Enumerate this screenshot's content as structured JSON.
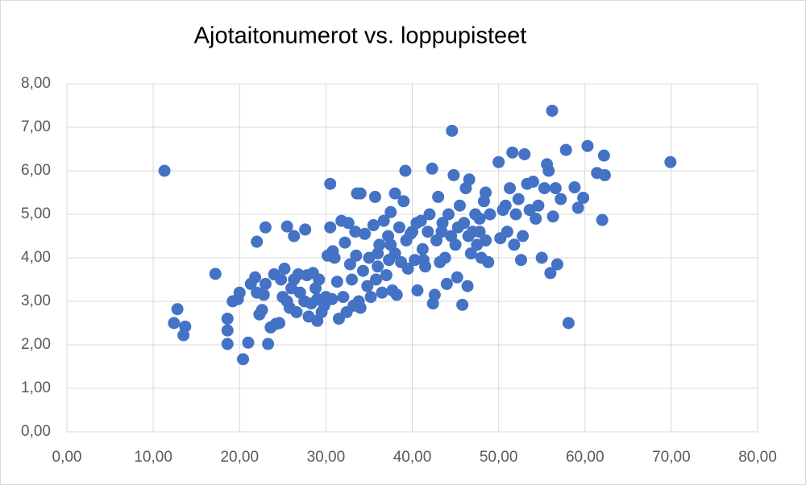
{
  "chart_data": {
    "type": "scatter",
    "title": "Ajotaitonumerot vs. loppupisteet",
    "color": "#4472c4",
    "grid": true,
    "xlim": [
      0,
      80
    ],
    "xticks": [
      {
        "value": 0,
        "label": "0,00"
      },
      {
        "value": 10,
        "label": "10,00"
      },
      {
        "value": 20,
        "label": "20,00"
      },
      {
        "value": 30,
        "label": "30,00"
      },
      {
        "value": 40,
        "label": "40,00"
      },
      {
        "value": 50,
        "label": "50,00"
      },
      {
        "value": 60,
        "label": "60,00"
      },
      {
        "value": 70,
        "label": "70,00"
      },
      {
        "value": 80,
        "label": "80,00"
      }
    ],
    "ylim": [
      0,
      8
    ],
    "yticks": [
      {
        "value": 0,
        "label": "0,00"
      },
      {
        "value": 1,
        "label": "1,00"
      },
      {
        "value": 2,
        "label": "2,00"
      },
      {
        "value": 3,
        "label": "3,00"
      },
      {
        "value": 4,
        "label": "4,00"
      },
      {
        "value": 5,
        "label": "5,00"
      },
      {
        "value": 6,
        "label": "6,00"
      },
      {
        "value": 7,
        "label": "7,00"
      },
      {
        "value": 8,
        "label": "8,00"
      }
    ],
    "x": [
      11.3,
      12.4,
      12.8,
      13.5,
      13.7,
      17.2,
      18.6,
      18.6,
      18.6,
      19.2,
      19.8,
      20.0,
      20.4,
      21.0,
      21.3,
      21.8,
      22.0,
      22.0,
      22.3,
      22.6,
      22.8,
      23.0,
      23.0,
      23.3,
      23.6,
      24.0,
      24.2,
      24.6,
      24.8,
      25.0,
      25.2,
      25.5,
      25.5,
      25.8,
      26.0,
      26.3,
      26.6,
      26.8,
      27.0,
      27.5,
      27.6,
      27.8,
      28.0,
      28.3,
      28.5,
      28.8,
      29.0,
      29.2,
      29.5,
      29.8,
      30.0,
      30.2,
      30.5,
      30.5,
      30.8,
      31.0,
      31.3,
      31.5,
      31.8,
      32.0,
      32.2,
      32.4,
      32.6,
      32.8,
      33.0,
      33.2,
      33.4,
      33.6,
      33.8,
      34.0,
      34.0,
      34.3,
      34.5,
      34.8,
      35.0,
      35.2,
      35.5,
      35.7,
      36.0,
      36.2,
      36.5,
      36.7,
      37.0,
      37.2,
      37.5,
      37.7,
      38.0,
      38.0,
      38.2,
      38.5,
      38.7,
      39.0,
      39.2,
      39.3,
      39.5,
      40.0,
      40.3,
      40.6,
      41.0,
      41.2,
      41.5,
      41.8,
      42.0,
      42.3,
      42.4,
      42.6,
      42.8,
      43.0,
      43.2,
      43.5,
      43.8,
      44.0,
      44.2,
      44.5,
      44.6,
      44.8,
      45.0,
      45.2,
      45.5,
      45.8,
      46.0,
      46.2,
      46.4,
      46.6,
      46.8,
      47.0,
      47.3,
      47.5,
      47.8,
      48.0,
      48.3,
      48.5,
      48.8,
      49.0,
      50.0,
      50.2,
      50.5,
      51.0,
      51.3,
      51.6,
      51.8,
      52.0,
      52.3,
      52.6,
      52.8,
      53.0,
      53.3,
      53.6,
      54.0,
      54.3,
      54.6,
      55.0,
      55.3,
      55.6,
      55.8,
      56.0,
      56.2,
      56.3,
      56.6,
      56.8,
      57.2,
      57.8,
      58.1,
      58.8,
      59.2,
      59.8,
      60.3,
      61.4,
      62.0,
      62.2,
      62.3,
      69.9,
      36.0,
      37.5,
      39.8,
      40.5,
      43.4,
      45.3,
      46.5,
      47.8,
      48.5,
      50.8,
      41.3,
      33.5,
      35.8,
      37.3,
      30.7,
      29.0,
      26.3
    ],
    "values": [
      6.0,
      2.5,
      2.82,
      2.22,
      2.42,
      3.63,
      2.6,
      2.33,
      2.02,
      3.0,
      3.05,
      3.2,
      1.67,
      2.05,
      3.4,
      3.55,
      4.37,
      3.2,
      2.7,
      2.8,
      3.15,
      4.7,
      3.4,
      2.02,
      2.4,
      3.62,
      2.48,
      2.5,
      3.5,
      3.1,
      3.75,
      3.0,
      4.72,
      2.85,
      3.3,
      4.5,
      2.75,
      3.62,
      3.2,
      3.0,
      4.65,
      3.6,
      2.65,
      2.95,
      3.65,
      3.3,
      2.55,
      3.5,
      2.75,
      2.9,
      3.1,
      4.05,
      5.7,
      4.7,
      4.15,
      4.0,
      3.45,
      2.6,
      4.85,
      3.1,
      4.35,
      2.75,
      4.8,
      3.85,
      3.5,
      2.9,
      4.6,
      5.48,
      3.0,
      5.48,
      2.85,
      3.7,
      4.55,
      3.35,
      4.0,
      3.1,
      4.75,
      5.4,
      3.8,
      4.3,
      3.2,
      4.85,
      3.6,
      4.5,
      5.05,
      3.25,
      5.48,
      4.1,
      3.15,
      4.7,
      3.9,
      5.3,
      6.0,
      4.4,
      3.75,
      4.6,
      3.95,
      3.25,
      4.85,
      4.2,
      3.8,
      4.6,
      5.0,
      6.05,
      2.95,
      3.15,
      4.4,
      5.4,
      3.9,
      4.8,
      4.0,
      3.4,
      5.0,
      4.5,
      6.92,
      5.9,
      4.3,
      3.55,
      5.2,
      2.92,
      4.8,
      5.6,
      3.35,
      5.8,
      4.1,
      4.6,
      5.0,
      4.3,
      4.9,
      4.0,
      5.3,
      4.4,
      3.9,
      5.0,
      6.2,
      4.45,
      5.1,
      4.6,
      5.6,
      6.42,
      4.3,
      5.0,
      5.35,
      3.95,
      4.5,
      6.38,
      5.7,
      5.1,
      5.75,
      4.9,
      5.2,
      4.0,
      5.6,
      6.15,
      6.0,
      3.65,
      7.38,
      4.95,
      5.6,
      3.85,
      5.35,
      6.48,
      2.5,
      5.62,
      5.15,
      5.38,
      6.57,
      5.95,
      4.87,
      6.35,
      5.9,
      6.2,
      4.1,
      4.3,
      4.55,
      4.8,
      4.6,
      4.7,
      4.5,
      4.6,
      5.5,
      5.2,
      3.95,
      4.05,
      3.5,
      3.95,
      3.05,
      3.05,
      3.5
    ]
  }
}
